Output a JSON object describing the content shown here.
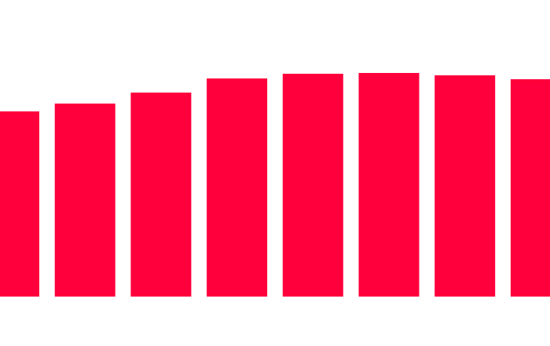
{
  "chart_data": {
    "type": "bar",
    "categories": [
      null,
      null,
      null,
      null,
      null,
      null,
      null,
      null
    ],
    "values": [
      236,
      246,
      260,
      278,
      284,
      285,
      282,
      277
    ],
    "color": "#ff003c",
    "ylim": [
      0,
      378
    ]
  }
}
